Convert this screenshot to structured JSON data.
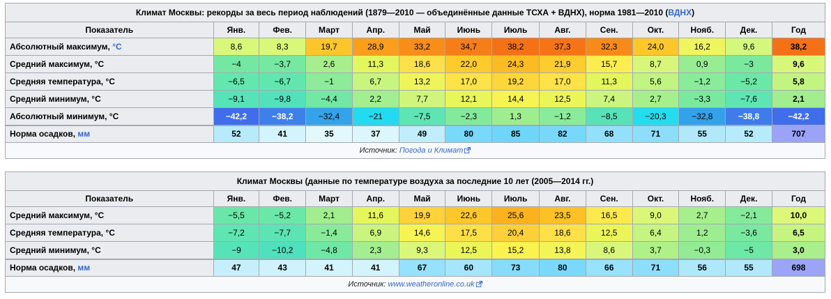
{
  "table1": {
    "caption_main": "Климат Москвы: рекорды за весь период наблюдений (1879—2010 — объединённые данные ТСХА + ВДНХ), норма 1981—2010 (",
    "caption_link": "ВДНХ",
    "caption_end": ")",
    "header": [
      "Показатель",
      "Янв.",
      "Фев.",
      "Март",
      "Апр.",
      "Май",
      "Июнь",
      "Июль",
      "Авг.",
      "Сен.",
      "Окт.",
      "Нояб.",
      "Дек.",
      "Год"
    ],
    "rows": [
      {
        "label": "Абсолютный максимум, ",
        "unit": "°C",
        "values": [
          "8,6",
          "8,3",
          "19,7",
          "28,9",
          "33,2",
          "34,7",
          "38,2",
          "37,3",
          "32,3",
          "24,0",
          "16,2",
          "9,6",
          "38,2"
        ],
        "colors": [
          "#d9f87a",
          "#d9f87a",
          "#fcc62b",
          "#fa9e1c",
          "#f88d1a",
          "#f67e18",
          "#f57116",
          "#f67416",
          "#f88a1a",
          "#fdc72b",
          "#eef55e",
          "#d4f77d",
          "#f57116"
        ]
      },
      {
        "label": "Средний максимум, °C",
        "unit": "",
        "values": [
          "−4",
          "−3,7",
          "2,6",
          "11,3",
          "18,6",
          "22,0",
          "24,3",
          "21,9",
          "15,7",
          "8,7",
          "0,9",
          "−3",
          "9,6"
        ],
        "colors": [
          "#74e8a3",
          "#76e8a2",
          "#a6ef8c",
          "#e3f65c",
          "#fde04a",
          "#fdcb2c",
          "#fcbb22",
          "#fdcc2e",
          "#fcee50",
          "#d8f77a",
          "#98ec92",
          "#7ae99e",
          "#d9f87a"
        ]
      },
      {
        "label": "Средняя температура, °C",
        "unit": "",
        "values": [
          "−6,5",
          "−6,7",
          "−1",
          "6,7",
          "13,2",
          "17,0",
          "19,2",
          "17,0",
          "11,3",
          "5,6",
          "−1,2",
          "−5,2",
          "5,8"
        ],
        "colors": [
          "#63e7ae",
          "#62e6af",
          "#8deb99",
          "#c8f57f",
          "#f0f45b",
          "#fde24a",
          "#fdd63a",
          "#fde24a",
          "#e3f65c",
          "#c1f482",
          "#8aeb9a",
          "#6be8a7",
          "#c2f481"
        ]
      },
      {
        "label": "Средний минимум, °C",
        "unit": "",
        "values": [
          "−9,1",
          "−9,8",
          "−4,4",
          "2,2",
          "7,7",
          "12,1",
          "14,4",
          "12,5",
          "7,4",
          "2,7",
          "−3,3",
          "−7,6",
          "2,1"
        ],
        "colors": [
          "#57e3b8",
          "#53e1bb",
          "#72e8a4",
          "#a3ee8e",
          "#cff57d",
          "#e8f659",
          "#f6f352",
          "#ecf558",
          "#cbf57e",
          "#a7ef8c",
          "#7ae99e",
          "#5ee5b2",
          "#a2ee8e"
        ]
      },
      {
        "label": "Абсолютный минимум, °C",
        "unit": "",
        "values": [
          "−42,2",
          "−38,2",
          "−32,4",
          "−21",
          "−7,5",
          "−2,3",
          "1,3",
          "−1,2",
          "−8,5",
          "−20,3",
          "−32,8",
          "−38,8",
          "−42,2"
        ],
        "colors": [
          "#3f6dec",
          "#3d80ea",
          "#33a3ea",
          "#22dbf0",
          "#5ee5b3",
          "#83ea9b",
          "#9eee90",
          "#8aeb9a",
          "#58e2b8",
          "#23ddef",
          "#33a2ea",
          "#3d7cea",
          "#3f6dec"
        ],
        "text_colors": [
          "#ffffff",
          "#ffffff",
          "#000000",
          "#000000",
          "#000000",
          "#000000",
          "#000000",
          "#000000",
          "#000000",
          "#000000",
          "#000000",
          "#ffffff",
          "#ffffff"
        ]
      },
      {
        "label": "Норма осадков, ",
        "unit": "мм",
        "values": [
          "52",
          "41",
          "35",
          "37",
          "49",
          "80",
          "85",
          "82",
          "68",
          "71",
          "55",
          "52",
          "707"
        ],
        "colors": [
          "#b7ebfb",
          "#d4f4fd",
          "#e2f8fd",
          "#ddf6fd",
          "#c1eefc",
          "#79d9fa",
          "#6fd5f9",
          "#77d8fa",
          "#93e0fb",
          "#8cdefb",
          "#b1e9fb",
          "#b7ebfb",
          "#9aa3f7"
        ]
      }
    ],
    "source_prefix": "Источник: ",
    "source_link": "Погода и Климат"
  },
  "table2": {
    "caption": "Климат Москвы (данные по температуре воздуха за последние 10 лет (2005—2014 гг.)",
    "header": [
      "Показатель",
      "Янв.",
      "Фев.",
      "Март",
      "Апр.",
      "Май",
      "Июнь",
      "Июль",
      "Авг.",
      "Сен.",
      "Окт.",
      "Нояб.",
      "Дек.",
      "Год"
    ],
    "rows": [
      {
        "label": "Средний максимум, °C",
        "unit": "",
        "values": [
          "−5,5",
          "−5,2",
          "2,1",
          "11,6",
          "19,9",
          "22,6",
          "25,6",
          "23,5",
          "16,5",
          "9,0",
          "2,7",
          "−2,1",
          "10,0"
        ],
        "colors": [
          "#6ae7a8",
          "#6be8a7",
          "#a2ee8e",
          "#e4f65c",
          "#fdd23a",
          "#fdc72b",
          "#fcb21e",
          "#fcc126",
          "#fbe94d",
          "#dbf779",
          "#a7ef8c",
          "#85ea9b",
          "#ddf779"
        ]
      },
      {
        "label": "Средняя температура, °C",
        "unit": "",
        "values": [
          "−7,2",
          "−7,7",
          "−1,4",
          "6,9",
          "14,6",
          "17,5",
          "20,4",
          "18,6",
          "12,5",
          "6,4",
          "1,2",
          "−3,6",
          "6,5"
        ],
        "colors": [
          "#5fe5b2",
          "#5de4b4",
          "#89eb9a",
          "#c9f57f",
          "#f7f352",
          "#fde048",
          "#fdd03a",
          "#fde04a",
          "#ecf558",
          "#c5f481",
          "#9dee90",
          "#79e99f",
          "#c6f481"
        ]
      },
      {
        "label": "Средний минимум, °C",
        "unit": "",
        "values": [
          "−9",
          "−10,2",
          "−4,8",
          "2,3",
          "9,3",
          "12,5",
          "15,2",
          "13,8",
          "8,6",
          "3,7",
          "−0,3",
          "−5",
          "3,0"
        ],
        "colors": [
          "#57e3b8",
          "#51e0bd",
          "#70e8a5",
          "#a3ee8e",
          "#dbf779",
          "#ecf558",
          "#faf24e",
          "#f3f457",
          "#d8f77a",
          "#aff089",
          "#93ec95",
          "#6ee8a6",
          "#a9ef8b"
        ]
      },
      {
        "label": "Норма осадков, ",
        "unit": "мм",
        "values": [
          "47",
          "43",
          "41",
          "41",
          "67",
          "60",
          "73",
          "80",
          "66",
          "71",
          "56",
          "55",
          "698"
        ],
        "colors": [
          "#c6effc",
          "#cff2fc",
          "#d4f4fd",
          "#d4f4fd",
          "#96e1fb",
          "#a5e6fb",
          "#87dcfb",
          "#79d9fa",
          "#98e2fb",
          "#8cdefb",
          "#afe8fb",
          "#b1e9fb",
          "#9ba4f7"
        ]
      }
    ],
    "source_prefix": "Источник: ",
    "source_link": "www.weatheronline.co.uk"
  }
}
